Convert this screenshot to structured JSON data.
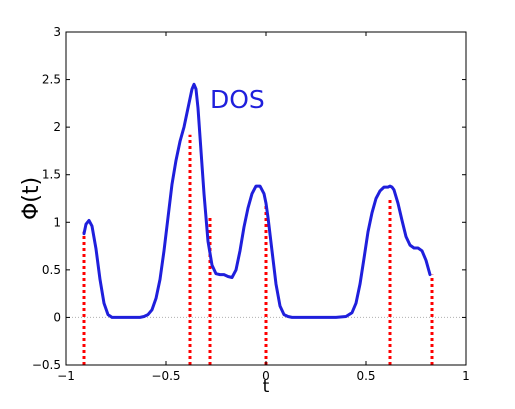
{
  "chart_data": {
    "type": "line",
    "title": "",
    "xlabel": "t",
    "ylabel": "Φ(t)",
    "xlim": [
      -1,
      1
    ],
    "ylim": [
      -0.5,
      3
    ],
    "xticks": [
      -1,
      -0.5,
      0,
      0.5,
      1
    ],
    "xtick_labels": [
      "−1",
      "−0.5",
      "0",
      "0.5",
      "1"
    ],
    "yticks": [
      -0.5,
      0,
      0.5,
      1,
      1.5,
      2,
      2.5,
      3
    ],
    "ytick_labels": [
      "−0.5",
      "0",
      "0.5",
      "1",
      "1.5",
      "2",
      "2.5",
      "3"
    ],
    "grid": false,
    "zero_line": true,
    "annotation": {
      "text": "DOS",
      "x": -0.28,
      "y": 2.2
    },
    "colors": {
      "curve": "#1f1fdc",
      "stems": "#ff0000",
      "zero_line": "#b0b0b0"
    },
    "series": [
      {
        "name": "DOS",
        "style": "solid",
        "x": [
          -0.91,
          -0.9,
          -0.885,
          -0.87,
          -0.85,
          -0.83,
          -0.81,
          -0.79,
          -0.77,
          -0.75,
          -0.73,
          -0.71,
          -0.69,
          -0.67,
          -0.65,
          -0.63,
          -0.61,
          -0.59,
          -0.57,
          -0.55,
          -0.53,
          -0.51,
          -0.49,
          -0.47,
          -0.45,
          -0.43,
          -0.41,
          -0.39,
          -0.37,
          -0.36,
          -0.35,
          -0.34,
          -0.33,
          -0.31,
          -0.29,
          -0.27,
          -0.25,
          -0.23,
          -0.21,
          -0.19,
          -0.17,
          -0.15,
          -0.13,
          -0.11,
          -0.09,
          -0.07,
          -0.05,
          -0.03,
          -0.01,
          0.0,
          0.01,
          0.03,
          0.05,
          0.07,
          0.09,
          0.11,
          0.13,
          0.15,
          0.17,
          0.2,
          0.25,
          0.3,
          0.35,
          0.4,
          0.43,
          0.45,
          0.47,
          0.49,
          0.51,
          0.53,
          0.55,
          0.57,
          0.59,
          0.61,
          0.62,
          0.63,
          0.64,
          0.66,
          0.68,
          0.7,
          0.72,
          0.74,
          0.76,
          0.78,
          0.8,
          0.82
        ],
        "y": [
          0.88,
          0.98,
          1.02,
          0.96,
          0.72,
          0.4,
          0.15,
          0.03,
          0.0,
          0.0,
          0.0,
          0.0,
          0.0,
          0.0,
          0.0,
          0.0,
          0.01,
          0.03,
          0.08,
          0.2,
          0.4,
          0.7,
          1.05,
          1.4,
          1.65,
          1.85,
          2.0,
          2.2,
          2.4,
          2.45,
          2.4,
          2.2,
          1.9,
          1.3,
          0.8,
          0.55,
          0.46,
          0.45,
          0.45,
          0.43,
          0.42,
          0.5,
          0.7,
          0.95,
          1.15,
          1.3,
          1.38,
          1.38,
          1.3,
          1.2,
          1.05,
          0.7,
          0.35,
          0.12,
          0.03,
          0.01,
          0.0,
          0.0,
          0.0,
          0.0,
          0.0,
          0.0,
          0.0,
          0.01,
          0.05,
          0.15,
          0.35,
          0.62,
          0.9,
          1.1,
          1.25,
          1.33,
          1.37,
          1.37,
          1.38,
          1.37,
          1.34,
          1.2,
          1.02,
          0.85,
          0.76,
          0.73,
          0.73,
          0.7,
          0.6,
          0.45
        ]
      },
      {
        "name": "",
        "style": "stems",
        "x": [
          -0.91,
          -0.38,
          -0.28,
          0.0,
          0.62,
          0.83
        ],
        "y": [
          0.9,
          1.92,
          1.05,
          1.2,
          1.25,
          0.45
        ]
      }
    ]
  }
}
